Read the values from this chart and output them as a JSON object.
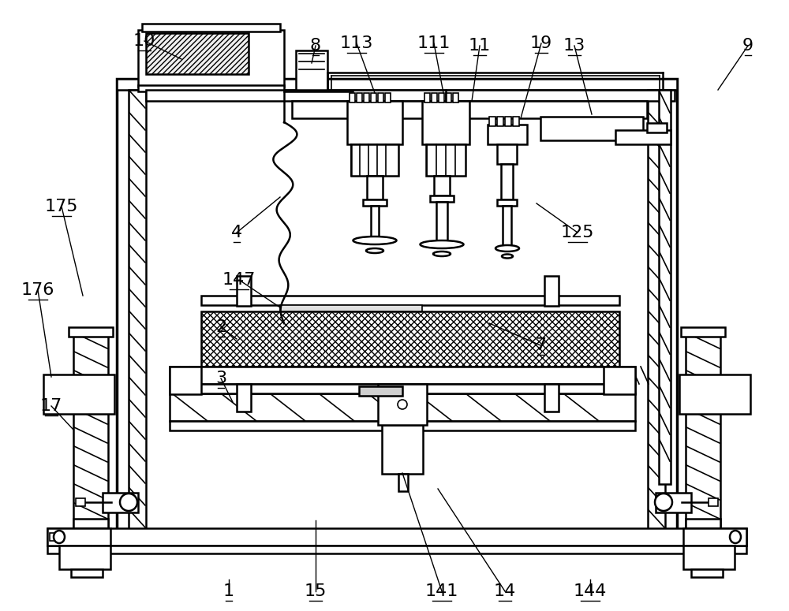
{
  "bg_color": "#ffffff",
  "lc": "#000000",
  "gray1": "#c8c8c8",
  "gray2": "#e8e8e8",
  "label_fontsize": 16,
  "figsize": [
    10.0,
    7.75
  ],
  "dpi": 100
}
